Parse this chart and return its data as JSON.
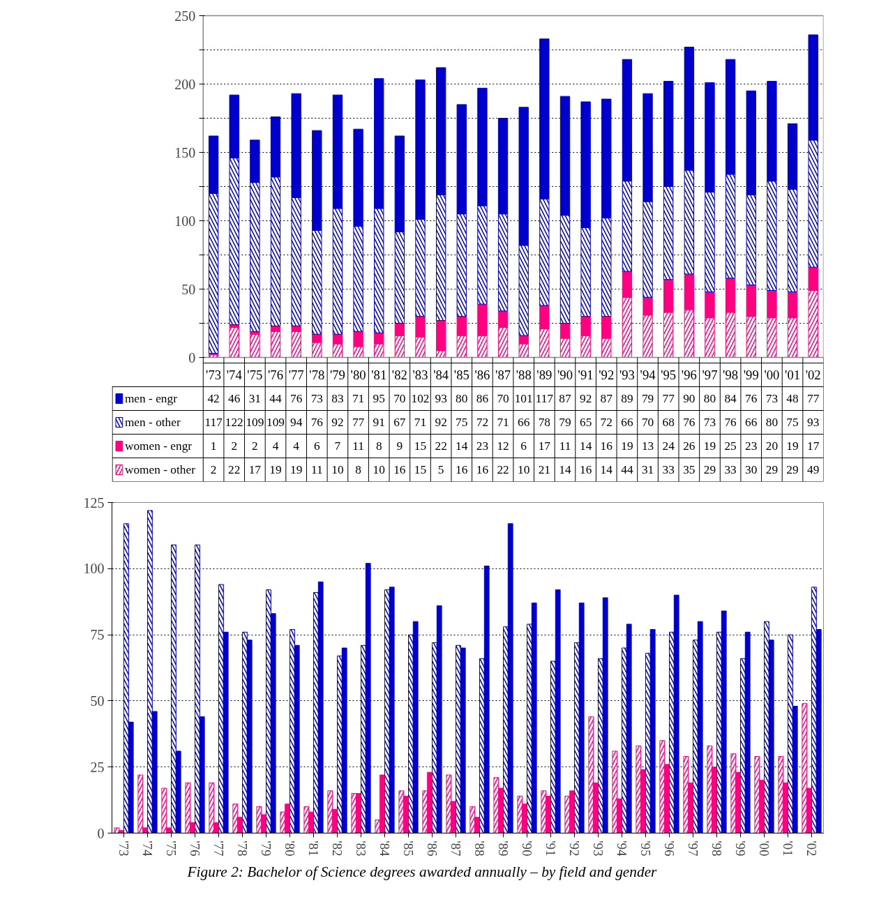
{
  "chart_data": [
    {
      "type": "bar",
      "stacked": true,
      "categories": [
        "'73",
        "'74",
        "'75",
        "'76",
        "'77",
        "'78",
        "'79",
        "'80",
        "'81",
        "'82",
        "'83",
        "'84",
        "'85",
        "'86",
        "'87",
        "'88",
        "'89",
        "'90",
        "'91",
        "'92",
        "'93",
        "'94",
        "'95",
        "'96",
        "'97",
        "'98",
        "'99",
        "'00",
        "'01",
        "'02"
      ],
      "series": [
        {
          "name": "women - other",
          "color": "#ff0080",
          "values": [
            2,
            22,
            17,
            19,
            19,
            11,
            10,
            8,
            10,
            16,
            15,
            5,
            16,
            16,
            22,
            10,
            21,
            14,
            16,
            14,
            44,
            31,
            33,
            35,
            29,
            33,
            30,
            29,
            29,
            49
          ]
        },
        {
          "name": "women - engr",
          "color": "#ff0080",
          "values": [
            1,
            2,
            2,
            4,
            4,
            6,
            7,
            11,
            8,
            9,
            15,
            22,
            14,
            23,
            12,
            6,
            17,
            11,
            14,
            16,
            19,
            13,
            24,
            26,
            19,
            25,
            23,
            20,
            19,
            17
          ]
        },
        {
          "name": "men - other",
          "color": "#0000cc",
          "values": [
            117,
            122,
            109,
            109,
            94,
            76,
            92,
            77,
            91,
            67,
            71,
            92,
            75,
            72,
            71,
            66,
            78,
            79,
            65,
            72,
            66,
            70,
            68,
            76,
            73,
            76,
            66,
            80,
            75,
            93
          ]
        },
        {
          "name": "men - engr",
          "color": "#0000cc",
          "values": [
            42,
            46,
            31,
            44,
            76,
            73,
            83,
            71,
            95,
            70,
            102,
            93,
            80,
            86,
            70,
            101,
            117,
            87,
            92,
            87,
            89,
            79,
            77,
            90,
            80,
            84,
            76,
            73,
            48,
            77
          ]
        }
      ],
      "ylim": [
        0,
        250
      ],
      "yticks": [
        0,
        {
          "value": 25,
          "label": null
        },
        50,
        {
          "value": 75,
          "label": null
        },
        100,
        {
          "value": 125,
          "label": null
        },
        150,
        {
          "value": 175,
          "label": null
        },
        200,
        {
          "value": 225,
          "label": null
        },
        250
      ],
      "grid": "y",
      "data_labels": true,
      "legend": "bottom left"
    },
    {
      "type": "bar",
      "categories": [
        "'73",
        "'74",
        "'75",
        "'76",
        "'77",
        "'78",
        "'79",
        "'80",
        "'81",
        "'82",
        "'83",
        "'84",
        "'85",
        "'86",
        "'87",
        "'88",
        "'89",
        "'90",
        "'91",
        "'92",
        "'93",
        "'94",
        "'95",
        "'96",
        "'97",
        "'98",
        "'99",
        "'00",
        "'01",
        "'02"
      ],
      "series": [
        {
          "color": "#ff0080",
          "values": [
            2,
            22,
            17,
            19,
            19,
            11,
            10,
            8,
            10,
            16,
            15,
            5,
            16,
            16,
            22,
            10,
            21,
            14,
            16,
            14,
            44,
            31,
            33,
            35,
            29,
            33,
            30,
            29,
            29,
            49
          ]
        },
        {
          "color": "#ff0080",
          "values": [
            1,
            2,
            2,
            4,
            4,
            6,
            7,
            11,
            8,
            9,
            15,
            22,
            14,
            23,
            12,
            6,
            17,
            11,
            14,
            16,
            19,
            13,
            24,
            26,
            19,
            25,
            23,
            20,
            19,
            17
          ]
        },
        {
          "color": "#0000cc",
          "values": [
            117,
            122,
            109,
            109,
            94,
            76,
            92,
            77,
            91,
            67,
            71,
            92,
            75,
            72,
            71,
            66,
            78,
            79,
            65,
            72,
            66,
            70,
            68,
            76,
            73,
            76,
            66,
            80,
            75,
            93
          ]
        },
        {
          "color": "#0000cc",
          "values": [
            42,
            46,
            31,
            44,
            76,
            73,
            83,
            71,
            95,
            70,
            102,
            93,
            80,
            86,
            70,
            101,
            117,
            87,
            92,
            87,
            89,
            79,
            77,
            90,
            80,
            84,
            76,
            73,
            48,
            77
          ]
        }
      ],
      "ylim": [
        0,
        125
      ],
      "yticks": [
        0,
        25,
        50,
        75,
        100,
        125
      ],
      "grid": "y",
      "annotations": [
        "Figure 2:  Bachelor of Science degrees awarded annually – by field and gender"
      ]
    }
  ]
}
